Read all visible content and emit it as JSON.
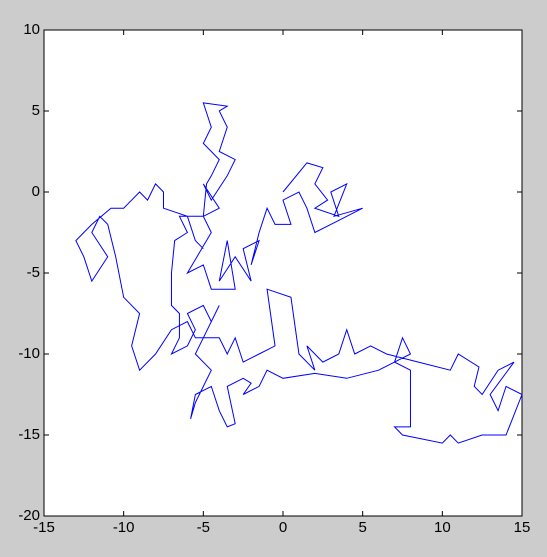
{
  "chart_data": {
    "type": "line",
    "color": "#0000ff",
    "x": [
      0,
      1.5,
      2.5,
      2,
      2.8,
      2,
      3.5,
      3,
      4,
      3.2,
      5,
      3,
      2,
      1.5,
      1,
      0,
      0.5,
      -0.5,
      -1,
      -1.5,
      -2,
      -1.5,
      -2.5,
      -2,
      -3,
      -4,
      -3.5,
      -3,
      -4.5,
      -5,
      -6,
      -4.5,
      -5,
      -4,
      -5,
      -4.5,
      -3.5,
      -3,
      -4,
      -3.5,
      -4,
      -3.5,
      -5,
      -4.5,
      -5,
      -4,
      -4.5,
      -4.8,
      -5,
      -6.5,
      -6,
      -6.8,
      -7,
      -7,
      -6.5,
      -6.5,
      -7,
      -6,
      -5.5,
      -6,
      -5,
      -4.5,
      -4,
      -5,
      -5.5,
      -4.5,
      -5,
      -5.5,
      -5.8,
      -5.5,
      -4.5,
      -4,
      -3.5,
      -3,
      -3.5,
      -2.5,
      -2,
      -2.5,
      -1.5,
      -1,
      0,
      2,
      4,
      6,
      7,
      8,
      7.5,
      7,
      8,
      8,
      7,
      7.5,
      10,
      10.5,
      11,
      12.5,
      14,
      15,
      14,
      13.5,
      13,
      14.5,
      13.5,
      12.5,
      12,
      12.3,
      11,
      10.5,
      8.5,
      6.5,
      5.5,
      4.5,
      4,
      3.5,
      2.5,
      1.5,
      2,
      1,
      0.5,
      -1,
      -0.5,
      -1.5,
      -2.5,
      -3,
      -3.5,
      -4,
      -5.5,
      -6,
      -7,
      -8,
      -9,
      -9.5,
      -9,
      -10,
      -10.5,
      -11,
      -11.5,
      -12,
      -11,
      -12,
      -12.5,
      -13,
      -12,
      -10.8,
      -10,
      -9,
      -8.5,
      -8,
      -7.5,
      -7.5,
      -6,
      -5.5,
      -5
    ],
    "values": [
      0,
      1.8,
      1.5,
      0.5,
      -0.5,
      -1,
      -1.5,
      0,
      0.5,
      -1.5,
      -1,
      -2,
      -2.5,
      -1,
      0,
      -0.5,
      -2,
      -2,
      -1,
      -2.5,
      -4.5,
      -3,
      -3.5,
      -5.5,
      -4,
      -5.5,
      -3,
      -6,
      -6,
      -4.5,
      -5,
      -2.5,
      -1.5,
      -1,
      0.5,
      -0.5,
      1,
      2,
      2.5,
      4,
      5,
      5.3,
      5.5,
      4,
      3,
      2,
      1,
      0.5,
      -1.5,
      -1.5,
      -2.5,
      -3,
      -5,
      -7,
      -7.5,
      -9,
      -10,
      -9.5,
      -8.5,
      -7.5,
      -7,
      -8,
      -7,
      -9,
      -10,
      -11,
      -12,
      -13,
      -14,
      -12.5,
      -12,
      -13.5,
      -14.5,
      -14.3,
      -12,
      -11.5,
      -11.8,
      -12.5,
      -12,
      -11,
      -11.5,
      -11.2,
      -11.5,
      -11,
      -10.5,
      -10,
      -9,
      -10.5,
      -11,
      -14.5,
      -14.5,
      -15,
      -15.5,
      -15,
      -15.5,
      -15,
      -15,
      -12.5,
      -12,
      -13.5,
      -12.5,
      -10.5,
      -11,
      -12.5,
      -12,
      -10.8,
      -10,
      -11,
      -10.5,
      -10,
      -9.5,
      -10,
      -8.5,
      -10,
      -10.5,
      -9.5,
      -11,
      -10,
      -6.5,
      -6,
      -9.5,
      -10,
      -10.5,
      -9,
      -10,
      -9,
      -9,
      -8,
      -8.5,
      -10,
      -11,
      -9.5,
      -7.5,
      -6.5,
      -4,
      -2,
      -1.5,
      -2.5,
      -4,
      -5.5,
      -4,
      -3,
      -2,
      -1,
      -1,
      0,
      -0.5,
      0.5,
      0,
      -1,
      -1.5,
      -3,
      -3.5
    ],
    "xlim": [
      -15,
      15
    ],
    "xticks": [
      -15,
      -10,
      -5,
      0,
      5,
      10,
      15
    ],
    "ylim": [
      -20,
      10
    ],
    "yticks": [
      -20,
      -15,
      -10,
      -5,
      0,
      5,
      10
    ]
  }
}
